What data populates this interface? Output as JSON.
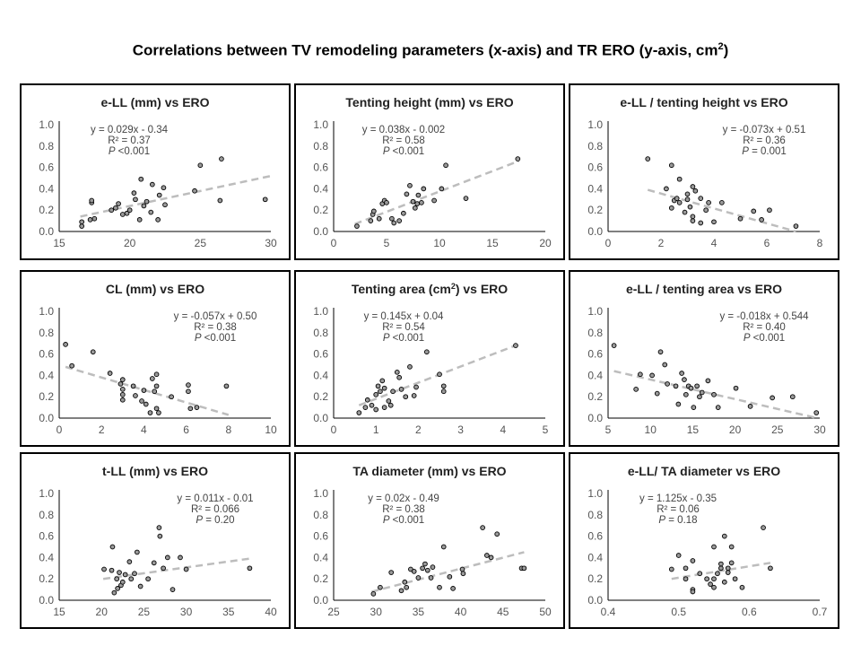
{
  "figure": {
    "title": "Correlations between TV remodeling parameters (x-axis) and TR ERO (y-axis, cm",
    "title_sup": "2",
    "title_end": ")"
  },
  "chart_data": [
    {
      "type": "scatter",
      "title": "e-LL (mm)  vs ERO",
      "xlim": [
        15,
        30
      ],
      "xticks": [
        15,
        20,
        25,
        30
      ],
      "ylim": [
        0,
        1
      ],
      "yticks": [
        0.0,
        0.2,
        0.4,
        0.6,
        0.8,
        1.0
      ],
      "equation": "y = 0.029x  - 0.34",
      "r2": "R² = 0.37",
      "p_label": "P",
      "p_value": " <0.001",
      "annotation_pos": "top-left",
      "trendline": {
        "x": [
          16.5,
          30
        ],
        "y": [
          0.14,
          0.52
        ]
      },
      "points": [
        [
          16.6,
          0.05
        ],
        [
          16.6,
          0.09
        ],
        [
          17.2,
          0.11
        ],
        [
          17.3,
          0.27
        ],
        [
          17.3,
          0.29
        ],
        [
          17.5,
          0.12
        ],
        [
          18.7,
          0.2
        ],
        [
          19,
          0.22
        ],
        [
          19.2,
          0.26
        ],
        [
          19.5,
          0.16
        ],
        [
          19.8,
          0.17
        ],
        [
          20,
          0.2
        ],
        [
          20.3,
          0.36
        ],
        [
          20.4,
          0.3
        ],
        [
          20.7,
          0.11
        ],
        [
          20.8,
          0.49
        ],
        [
          21,
          0.24
        ],
        [
          21.2,
          0.28
        ],
        [
          21.5,
          0.18
        ],
        [
          21.6,
          0.44
        ],
        [
          22,
          0.11
        ],
        [
          22.1,
          0.34
        ],
        [
          22.4,
          0.41
        ],
        [
          22.5,
          0.25
        ],
        [
          24.6,
          0.38
        ],
        [
          25,
          0.62
        ],
        [
          26.4,
          0.29
        ],
        [
          26.5,
          0.68
        ],
        [
          29.6,
          0.3
        ]
      ]
    },
    {
      "type": "scatter",
      "title": "Tenting height (mm) vs ERO",
      "xlim": [
        0,
        20
      ],
      "xticks": [
        0,
        5,
        10,
        15,
        20
      ],
      "ylim": [
        0,
        1
      ],
      "yticks": [
        0.0,
        0.2,
        0.4,
        0.6,
        0.8,
        1.0
      ],
      "equation": "y = 0.038x  - 0.002",
      "r2": "R² = 0.58",
      "p_label": "P",
      "p_value": " <0.001",
      "annotation_pos": "top-left",
      "trendline": {
        "x": [
          2,
          17.5
        ],
        "y": [
          0.07,
          0.66
        ]
      },
      "points": [
        [
          2.2,
          0.05
        ],
        [
          3.5,
          0.1
        ],
        [
          3.7,
          0.16
        ],
        [
          3.8,
          0.19
        ],
        [
          4.3,
          0.12
        ],
        [
          4.6,
          0.26
        ],
        [
          4.8,
          0.29
        ],
        [
          5,
          0.27
        ],
        [
          5.5,
          0.12
        ],
        [
          5.7,
          0.08
        ],
        [
          6.2,
          0.1
        ],
        [
          6.6,
          0.17
        ],
        [
          6.9,
          0.35
        ],
        [
          7.2,
          0.43
        ],
        [
          7.5,
          0.28
        ],
        [
          7.7,
          0.22
        ],
        [
          7.9,
          0.26
        ],
        [
          8,
          0.34
        ],
        [
          8.3,
          0.27
        ],
        [
          8.5,
          0.4
        ],
        [
          9.5,
          0.29
        ],
        [
          10.2,
          0.4
        ],
        [
          10.6,
          0.62
        ],
        [
          12.5,
          0.31
        ],
        [
          17.4,
          0.68
        ]
      ]
    },
    {
      "type": "scatter",
      "title": "e-LL / tenting height  vs ERO",
      "xlim": [
        0,
        8
      ],
      "xticks": [
        0,
        2,
        4,
        6,
        8
      ],
      "ylim": [
        0,
        1
      ],
      "yticks": [
        0.0,
        0.2,
        0.4,
        0.6,
        0.8,
        1.0
      ],
      "equation": "y = -0.073x + 0.51",
      "r2": "R² = 0.36",
      "p_label": "P",
      "p_value": " = 0.001",
      "annotation_pos": "top-right",
      "trendline": {
        "x": [
          1.5,
          7.1
        ],
        "y": [
          0.39,
          0.0
        ]
      },
      "points": [
        [
          1.5,
          0.68
        ],
        [
          2.2,
          0.4
        ],
        [
          2.4,
          0.62
        ],
        [
          2.4,
          0.22
        ],
        [
          2.5,
          0.29
        ],
        [
          2.6,
          0.31
        ],
        [
          2.7,
          0.49
        ],
        [
          2.7,
          0.27
        ],
        [
          2.9,
          0.18
        ],
        [
          3,
          0.3
        ],
        [
          3,
          0.35
        ],
        [
          3.1,
          0.23
        ],
        [
          3.2,
          0.1
        ],
        [
          3.2,
          0.14
        ],
        [
          3.2,
          0.42
        ],
        [
          3.3,
          0.38
        ],
        [
          3.5,
          0.08
        ],
        [
          3.5,
          0.31
        ],
        [
          3.7,
          0.2
        ],
        [
          3.8,
          0.27
        ],
        [
          4,
          0.09
        ],
        [
          4.3,
          0.27
        ],
        [
          5,
          0.12
        ],
        [
          5.5,
          0.19
        ],
        [
          5.8,
          0.11
        ],
        [
          6.1,
          0.2
        ],
        [
          7.1,
          0.05
        ]
      ]
    },
    {
      "type": "scatter",
      "title": "CL (mm) vs ERO",
      "xlim": [
        0,
        10
      ],
      "xticks": [
        0,
        2,
        4,
        6,
        8,
        10
      ],
      "ylim": [
        0,
        1
      ],
      "yticks": [
        0.0,
        0.2,
        0.4,
        0.6,
        0.8,
        1.0
      ],
      "equation": "y = -0.057x + 0.50",
      "r2": "R² = 0.38",
      "p_label": "P",
      "p_value": " <0.001",
      "annotation_pos": "top-right",
      "trendline": {
        "x": [
          0.3,
          8
        ],
        "y": [
          0.48,
          0.03
        ]
      },
      "points": [
        [
          0.3,
          0.69
        ],
        [
          0.6,
          0.49
        ],
        [
          1.6,
          0.62
        ],
        [
          2.4,
          0.42
        ],
        [
          2.9,
          0.32
        ],
        [
          3,
          0.17
        ],
        [
          3,
          0.22
        ],
        [
          3,
          0.27
        ],
        [
          3,
          0.36
        ],
        [
          3.5,
          0.3
        ],
        [
          3.6,
          0.21
        ],
        [
          3.9,
          0.16
        ],
        [
          4,
          0.26
        ],
        [
          4.1,
          0.13
        ],
        [
          4.3,
          0.05
        ],
        [
          4.4,
          0.37
        ],
        [
          4.5,
          0.25
        ],
        [
          4.6,
          0.3
        ],
        [
          4.6,
          0.41
        ],
        [
          4.6,
          0.09
        ],
        [
          4.7,
          0.05
        ],
        [
          5.3,
          0.2
        ],
        [
          6.1,
          0.25
        ],
        [
          6.1,
          0.31
        ],
        [
          6.2,
          0.09
        ],
        [
          6.5,
          0.1
        ],
        [
          7.9,
          0.3
        ]
      ]
    },
    {
      "type": "scatter",
      "title": "Tenting area (cm",
      "title_sup": "2",
      "title_end": ") vs ERO",
      "xlim": [
        0,
        5
      ],
      "xticks": [
        0,
        1,
        2,
        3,
        4,
        5
      ],
      "ylim": [
        0,
        1
      ],
      "yticks": [
        0.0,
        0.2,
        0.4,
        0.6,
        0.8,
        1.0
      ],
      "equation": "y = 0.145x + 0.04",
      "r2": "R² = 0.54",
      "p_label": "P",
      "p_value": " <0.001",
      "annotation_pos": "top-left",
      "trendline": {
        "x": [
          0.6,
          4.3
        ],
        "y": [
          0.12,
          0.68
        ]
      },
      "points": [
        [
          0.6,
          0.05
        ],
        [
          0.75,
          0.1
        ],
        [
          0.8,
          0.17
        ],
        [
          0.9,
          0.12
        ],
        [
          1,
          0.08
        ],
        [
          1,
          0.22
        ],
        [
          1.05,
          0.3
        ],
        [
          1.1,
          0.25
        ],
        [
          1.15,
          0.35
        ],
        [
          1.2,
          0.1
        ],
        [
          1.2,
          0.28
        ],
        [
          1.3,
          0.16
        ],
        [
          1.35,
          0.12
        ],
        [
          1.4,
          0.25
        ],
        [
          1.5,
          0.43
        ],
        [
          1.55,
          0.38
        ],
        [
          1.6,
          0.27
        ],
        [
          1.7,
          0.2
        ],
        [
          1.8,
          0.48
        ],
        [
          1.9,
          0.21
        ],
        [
          1.95,
          0.29
        ],
        [
          2.2,
          0.62
        ],
        [
          2.5,
          0.41
        ],
        [
          2.6,
          0.25
        ],
        [
          2.6,
          0.3
        ],
        [
          4.3,
          0.68
        ]
      ]
    },
    {
      "type": "scatter",
      "title": "e-LL / tenting area vs ERO",
      "xlim": [
        5,
        30
      ],
      "xticks": [
        5,
        10,
        15,
        20,
        25,
        30
      ],
      "ylim": [
        0,
        1
      ],
      "yticks": [
        0.0,
        0.2,
        0.4,
        0.6,
        0.8,
        1.0
      ],
      "equation": "y = -0.018x + 0.544",
      "r2": "R² = 0.40",
      "p_label": "P",
      "p_value": " <0.001",
      "annotation_pos": "top-right",
      "trendline": {
        "x": [
          5.7,
          29.7
        ],
        "y": [
          0.44,
          0.0
        ]
      },
      "points": [
        [
          5.7,
          0.68
        ],
        [
          8.3,
          0.27
        ],
        [
          8.8,
          0.41
        ],
        [
          10.2,
          0.4
        ],
        [
          10.8,
          0.23
        ],
        [
          11.2,
          0.62
        ],
        [
          11.7,
          0.5
        ],
        [
          12,
          0.32
        ],
        [
          13,
          0.3
        ],
        [
          13.3,
          0.13
        ],
        [
          13.7,
          0.42
        ],
        [
          14,
          0.36
        ],
        [
          14.2,
          0.22
        ],
        [
          14.5,
          0.3
        ],
        [
          14.8,
          0.28
        ],
        [
          15.1,
          0.1
        ],
        [
          15.5,
          0.3
        ],
        [
          15.8,
          0.2
        ],
        [
          16.1,
          0.24
        ],
        [
          16.8,
          0.35
        ],
        [
          17.5,
          0.22
        ],
        [
          18,
          0.1
        ],
        [
          20.1,
          0.28
        ],
        [
          21.8,
          0.11
        ],
        [
          24.4,
          0.19
        ],
        [
          26.8,
          0.2
        ],
        [
          29.6,
          0.05
        ]
      ]
    },
    {
      "type": "scatter",
      "title": "t-LL (mm) vs ERO",
      "xlim": [
        15,
        40
      ],
      "xticks": [
        15,
        20,
        25,
        30,
        35,
        40
      ],
      "ylim": [
        0,
        1
      ],
      "yticks": [
        0.0,
        0.2,
        0.4,
        0.6,
        0.8,
        1.0
      ],
      "equation": "y = 0.011x  - 0.01",
      "r2": "R² = 0.066",
      "p_label": "P",
      "p_value": " = 0.20",
      "annotation_pos": "top-right",
      "trendline": {
        "x": [
          20.2,
          37.5
        ],
        "y": [
          0.2,
          0.39
        ]
      },
      "points": [
        [
          20.3,
          0.29
        ],
        [
          21.2,
          0.28
        ],
        [
          21.3,
          0.5
        ],
        [
          21.5,
          0.07
        ],
        [
          21.8,
          0.2
        ],
        [
          21.9,
          0.11
        ],
        [
          22.1,
          0.26
        ],
        [
          22.3,
          0.14
        ],
        [
          22.5,
          0.17
        ],
        [
          22.8,
          0.24
        ],
        [
          23.3,
          0.36
        ],
        [
          23.5,
          0.2
        ],
        [
          23.9,
          0.25
        ],
        [
          24.2,
          0.45
        ],
        [
          24.6,
          0.13
        ],
        [
          25.5,
          0.2
        ],
        [
          26.2,
          0.35
        ],
        [
          26.8,
          0.68
        ],
        [
          26.9,
          0.6
        ],
        [
          27.3,
          0.3
        ],
        [
          27.8,
          0.4
        ],
        [
          28.4,
          0.1
        ],
        [
          29.3,
          0.4
        ],
        [
          30,
          0.29
        ],
        [
          37.5,
          0.3
        ]
      ]
    },
    {
      "type": "scatter",
      "title": "TA diameter  (mm) vs ERO",
      "xlim": [
        25,
        50
      ],
      "xticks": [
        25,
        30,
        35,
        40,
        45,
        50
      ],
      "ylim": [
        0,
        1
      ],
      "yticks": [
        0.0,
        0.2,
        0.4,
        0.6,
        0.8,
        1.0
      ],
      "equation": "y = 0.02x  - 0.49",
      "r2": "R² = 0.38",
      "p_label": "P",
      "p_value": " <0.001",
      "annotation_pos": "top-left",
      "trendline": {
        "x": [
          29.5,
          47.5
        ],
        "y": [
          0.08,
          0.45
        ]
      },
      "points": [
        [
          29.7,
          0.06
        ],
        [
          30.5,
          0.12
        ],
        [
          31.8,
          0.26
        ],
        [
          33,
          0.09
        ],
        [
          33.4,
          0.17
        ],
        [
          33.6,
          0.12
        ],
        [
          34.1,
          0.29
        ],
        [
          34.5,
          0.27
        ],
        [
          35,
          0.21
        ],
        [
          35.5,
          0.3
        ],
        [
          35.8,
          0.34
        ],
        [
          36.1,
          0.28
        ],
        [
          36.5,
          0.21
        ],
        [
          36.7,
          0.31
        ],
        [
          37.5,
          0.12
        ],
        [
          38,
          0.5
        ],
        [
          38.7,
          0.22
        ],
        [
          39.1,
          0.11
        ],
        [
          40.2,
          0.29
        ],
        [
          40.3,
          0.25
        ],
        [
          42.6,
          0.68
        ],
        [
          43.1,
          0.42
        ],
        [
          43.6,
          0.4
        ],
        [
          44.3,
          0.62
        ],
        [
          47.2,
          0.3
        ],
        [
          47.5,
          0.3
        ]
      ]
    },
    {
      "type": "scatter",
      "title": "e-LL/ TA diameter vs ERO",
      "xlim": [
        0.4,
        0.7
      ],
      "xticks": [
        0.4,
        0.5,
        0.6,
        0.7
      ],
      "ylim": [
        0,
        1
      ],
      "yticks": [
        0.0,
        0.2,
        0.4,
        0.6,
        0.8,
        1.0
      ],
      "equation": "y = 1.125x  - 0.35",
      "r2": "R² = 0.06",
      "p_label": "P",
      "p_value": " = 0.18",
      "annotation_pos": "top-left",
      "trendline": {
        "x": [
          0.49,
          0.63
        ],
        "y": [
          0.2,
          0.35
        ]
      },
      "points": [
        [
          0.49,
          0.29
        ],
        [
          0.5,
          0.42
        ],
        [
          0.51,
          0.3
        ],
        [
          0.51,
          0.2
        ],
        [
          0.52,
          0.1
        ],
        [
          0.52,
          0.37
        ],
        [
          0.52,
          0.08
        ],
        [
          0.53,
          0.25
        ],
        [
          0.54,
          0.2
        ],
        [
          0.545,
          0.15
        ],
        [
          0.55,
          0.5
        ],
        [
          0.55,
          0.2
        ],
        [
          0.55,
          0.12
        ],
        [
          0.555,
          0.25
        ],
        [
          0.56,
          0.34
        ],
        [
          0.56,
          0.3
        ],
        [
          0.565,
          0.6
        ],
        [
          0.565,
          0.17
        ],
        [
          0.57,
          0.26
        ],
        [
          0.57,
          0.3
        ],
        [
          0.575,
          0.35
        ],
        [
          0.575,
          0.5
        ],
        [
          0.58,
          0.2
        ],
        [
          0.59,
          0.12
        ],
        [
          0.62,
          0.68
        ],
        [
          0.63,
          0.3
        ]
      ]
    }
  ]
}
